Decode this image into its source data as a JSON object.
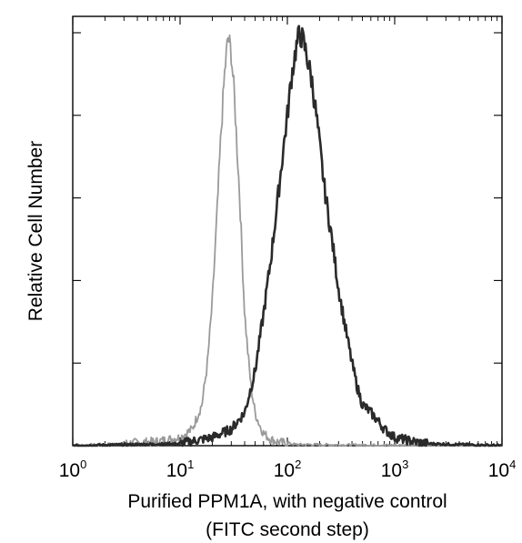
{
  "chart_data": {
    "type": "line",
    "xlabel_line1": "Purified PPM1A, with negative control",
    "xlabel_line2": "(FITC second step)",
    "ylabel": "Relative Cell Number",
    "x_scale": "log",
    "xlim": [
      1,
      10000
    ],
    "ylim": [
      0,
      100
    ],
    "grid": false,
    "legend": "none",
    "x_ticks": [
      {
        "base": "10",
        "exp": "0",
        "value": 1
      },
      {
        "base": "10",
        "exp": "1",
        "value": 10
      },
      {
        "base": "10",
        "exp": "2",
        "value": 100
      },
      {
        "base": "10",
        "exp": "3",
        "value": 1000
      },
      {
        "base": "10",
        "exp": "4",
        "value": 10000
      }
    ],
    "series": [
      {
        "color": "#9a9a9a",
        "x": [
          1.0,
          3.0,
          6.0,
          10.0,
          13.0,
          16.0,
          18.0,
          20.0,
          22.0,
          24.0,
          26.0,
          28.0,
          30.0,
          32.0,
          34.0,
          36.0,
          38.0,
          40.0,
          43.0,
          46.0,
          50.0,
          55.0,
          60.0,
          70.0,
          85.0,
          120.0,
          300.0,
          1000.0,
          10000.0
        ],
        "values": [
          0,
          0.5,
          1,
          2,
          4,
          10,
          20,
          35,
          55,
          75,
          90,
          99,
          95,
          85,
          72,
          60,
          45,
          32,
          22,
          14,
          8,
          5,
          3,
          1.5,
          0.8,
          0.3,
          0.2,
          0.1,
          0
        ]
      },
      {
        "color": "#2a2a2a",
        "x": [
          1.0,
          10.0,
          20.0,
          30.0,
          40.0,
          50.0,
          60.0,
          70.0,
          80.0,
          90.0,
          100.0,
          110.0,
          120.0,
          130.0,
          140.0,
          150.0,
          170.0,
          190.0,
          220.0,
          260.0,
          300.0,
          350.0,
          400.0,
          450.0,
          500.0,
          600.0,
          700.0,
          800.0,
          1000.0,
          1500.0,
          2000.0,
          10000.0
        ],
        "values": [
          0,
          0.5,
          2,
          4,
          8,
          18,
          32,
          45,
          58,
          70,
          80,
          90,
          96,
          100,
          98,
          95,
          88,
          78,
          63,
          50,
          38,
          28,
          20,
          14,
          10,
          8,
          6,
          4,
          2,
          1,
          0.5,
          0
        ]
      }
    ]
  }
}
